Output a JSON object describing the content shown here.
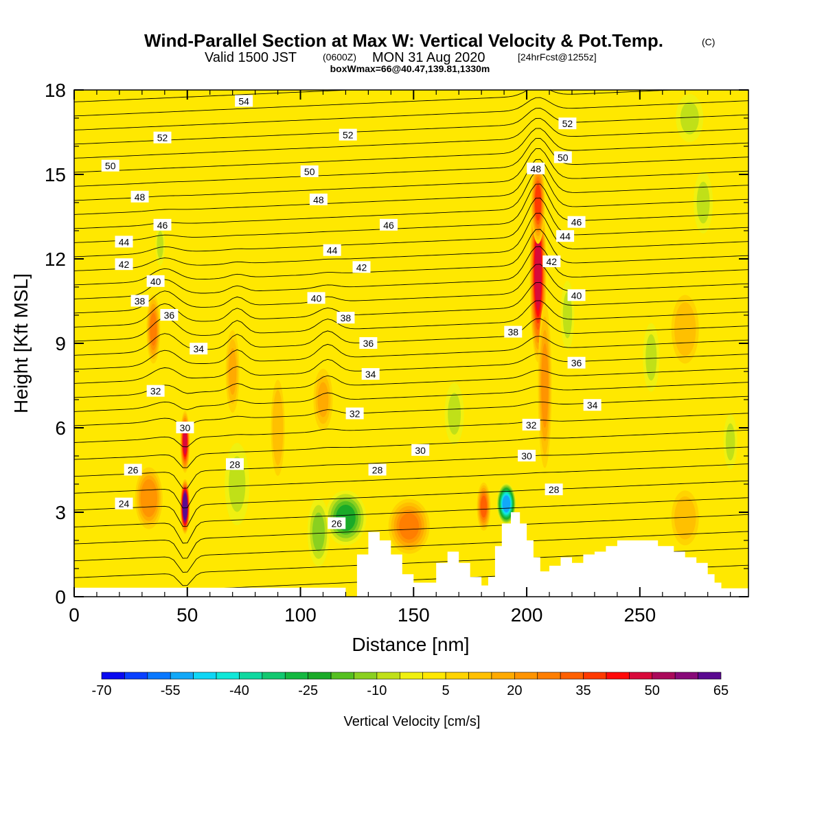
{
  "title": {
    "main": "Wind-Parallel Section at Max W: Vertical Velocity & Pot.Temp.",
    "copyright": "(C)",
    "valid_a": "Valid 1500 JST",
    "valid_z": "(0600Z)",
    "valid_b": "MON 31 Aug 2020",
    "fcst": "[24hrFcst@1255z]",
    "box": "boxWmax=66@40.47,139.81,1330m"
  },
  "chart_data": {
    "type": "heatmap",
    "xlabel": "Distance [nm]",
    "ylabel": "Height [Kft MSL]",
    "xlim": [
      0,
      298
    ],
    "ylim": [
      0,
      18
    ],
    "xticks": [
      0,
      50,
      100,
      150,
      200,
      250
    ],
    "yticks": [
      0,
      3,
      6,
      9,
      12,
      15,
      18
    ],
    "colorbar": {
      "label": "Vertical Velocity [cm/s]",
      "ticks": [
        -70,
        -55,
        -40,
        -25,
        -10,
        5,
        20,
        35,
        50,
        65
      ],
      "bins": [
        -70,
        -65,
        -60,
        -55,
        -50,
        -45,
        -40,
        -35,
        -30,
        -25,
        -20,
        -15,
        -10,
        -5,
        0,
        5,
        10,
        15,
        20,
        25,
        30,
        35,
        40,
        45,
        50,
        55,
        60,
        65
      ],
      "colors": [
        "#0a0af0",
        "#0a40ff",
        "#0a78ff",
        "#12a8f8",
        "#10d6f5",
        "#10e8d8",
        "#10d8a0",
        "#12c870",
        "#14b840",
        "#1aaa28",
        "#55c020",
        "#8ad020",
        "#c0e018",
        "#f0f010",
        "#ffe800",
        "#ffd400",
        "#ffc000",
        "#ffaa00",
        "#ff9400",
        "#ff7e00",
        "#ff6000",
        "#ff3a00",
        "#ff0a0a",
        "#d80a3a",
        "#aa0a5a",
        "#880a78",
        "#5a0a90"
      ]
    },
    "velocity_features": [
      {
        "x": 49,
        "z": 3.2,
        "w": 66
      },
      {
        "x": 49,
        "z": 5.5,
        "w": 45
      },
      {
        "x": 35,
        "z": 9.5,
        "w": 25
      },
      {
        "x": 205,
        "z": 11.5,
        "w": 45
      },
      {
        "x": 205,
        "z": 14,
        "w": 35
      },
      {
        "x": 208,
        "z": 7.5,
        "w": 20
      },
      {
        "x": 191,
        "z": 3.3,
        "w": -55
      },
      {
        "x": 181,
        "z": 3.2,
        "w": 30
      },
      {
        "x": 148,
        "z": 2.5,
        "w": 25
      },
      {
        "x": 120,
        "z": 2.8,
        "w": -25
      },
      {
        "x": 108,
        "z": 2.3,
        "w": -15
      },
      {
        "x": 33,
        "z": 3.5,
        "w": 22
      },
      {
        "x": 70,
        "z": 8.0,
        "w": 15
      },
      {
        "x": 110,
        "z": 7.0,
        "w": 15
      },
      {
        "x": 90,
        "z": 6.0,
        "w": 12
      },
      {
        "x": 270,
        "z": 9.5,
        "w": 12
      },
      {
        "x": 270,
        "z": 2.8,
        "w": 12
      },
      {
        "x": 168,
        "z": 6.5,
        "w": -8
      },
      {
        "x": 218,
        "z": 10.0,
        "w": -8
      },
      {
        "x": 255,
        "z": 8.5,
        "w": -8
      },
      {
        "x": 278,
        "z": 14.0,
        "w": -10
      },
      {
        "x": 272,
        "z": 17.0,
        "w": -8
      },
      {
        "x": 290,
        "z": 5.5,
        "w": -8
      },
      {
        "x": 72,
        "z": 4.0,
        "w": -8
      },
      {
        "x": 38,
        "z": 12.5,
        "w": -6
      }
    ],
    "contour_labels": [
      "54",
      "52",
      "52",
      "52",
      "50",
      "50",
      "50",
      "48",
      "48",
      "48",
      "46",
      "46",
      "46",
      "44",
      "44",
      "44",
      "42",
      "42",
      "42",
      "40",
      "40",
      "40",
      "38",
      "38",
      "38",
      "36",
      "36",
      "36",
      "34",
      "34",
      "34",
      "32",
      "32",
      "32",
      "30",
      "30",
      "30",
      "28",
      "28",
      "28",
      "26",
      "26",
      "24"
    ],
    "terrain": [
      [
        120,
        0
      ],
      [
        125,
        1.5
      ],
      [
        130,
        2.3
      ],
      [
        135,
        2.0
      ],
      [
        140,
        1.5
      ],
      [
        145,
        0.8
      ],
      [
        150,
        0.5
      ],
      [
        155,
        0.5
      ],
      [
        160,
        1.2
      ],
      [
        165,
        1.6
      ],
      [
        170,
        1.2
      ],
      [
        175,
        0.7
      ],
      [
        180,
        0.4
      ],
      [
        183,
        0.7
      ],
      [
        186,
        1.8
      ],
      [
        189,
        2.6
      ],
      [
        193,
        3.0
      ],
      [
        197,
        2.6
      ],
      [
        200,
        2.0
      ],
      [
        203,
        1.4
      ],
      [
        206,
        0.9
      ],
      [
        210,
        1.1
      ],
      [
        215,
        1.4
      ],
      [
        220,
        1.2
      ],
      [
        225,
        1.5
      ],
      [
        230,
        1.6
      ],
      [
        235,
        1.8
      ],
      [
        240,
        2.0
      ],
      [
        250,
        2.0
      ],
      [
        258,
        1.8
      ],
      [
        265,
        1.6
      ],
      [
        270,
        1.4
      ],
      [
        275,
        1.2
      ],
      [
        280,
        0.8
      ],
      [
        283,
        0.5
      ],
      [
        286,
        0.3
      ],
      [
        290,
        0.3
      ],
      [
        298,
        0.3
      ]
    ]
  }
}
